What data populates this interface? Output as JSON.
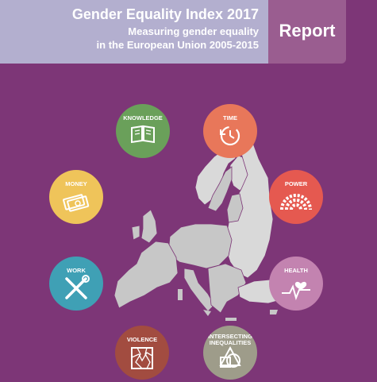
{
  "header": {
    "title": "Gender Equality Index 2017",
    "subtitle_line1": "Measuring gender equality",
    "subtitle_line2": "in the European Union 2005-2015",
    "report_label": "Report"
  },
  "domains": [
    {
      "label": "KNOWLEDGE",
      "color": "#6aa05a",
      "icon": "book-icon"
    },
    {
      "label": "TIME",
      "color": "#e8775a",
      "icon": "clock-icon"
    },
    {
      "label": "MONEY",
      "color": "#efc45a",
      "icon": "money-icon"
    },
    {
      "label": "POWER",
      "color": "#e55950",
      "icon": "parliament-icon"
    },
    {
      "label": "WORK",
      "color": "#3fa0b5",
      "icon": "tools-icon"
    },
    {
      "label": "HEALTH",
      "color": "#c383b0",
      "icon": "heartbeat-icon"
    },
    {
      "label": "VIOLENCE",
      "color": "#a24c40",
      "icon": "broken-glass-icon"
    },
    {
      "label": "INTERSECTING INEQUALITIES",
      "color": "#9e9c8a",
      "icon": "shapes-icon"
    }
  ]
}
